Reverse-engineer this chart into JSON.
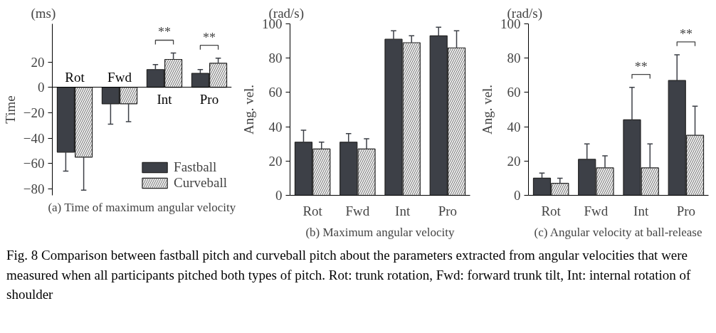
{
  "chart_data": [
    {
      "type": "bar",
      "title": "(a) Time of maximum angular velocity",
      "ylabel": "Time",
      "categories": [
        "Rot",
        "Fwd",
        "Int",
        "Pro"
      ],
      "series": [
        {
          "name": "Fastball",
          "color": "#3d4047",
          "values": [
            -51,
            -13,
            14,
            11
          ],
          "errors": [
            [
              -66,
              -51
            ],
            [
              -29,
              -13
            ],
            [
              14,
              18
            ],
            [
              11,
              14
            ]
          ]
        },
        {
          "name": "Curveball",
          "color": "#eeeeee",
          "values": [
            -55,
            -13,
            22,
            19
          ],
          "errors": [
            [
              -81,
              -55
            ],
            [
              -27,
              -13
            ],
            [
              22,
              27
            ],
            [
              19,
              23
            ]
          ]
        }
      ],
      "ylim": [
        -85,
        50
      ],
      "yticks": [
        -80,
        -60,
        -40,
        -20,
        0,
        20
      ],
      "legend": "bottom right",
      "grid": false,
      "annotations": [
        "(ms)",
        "**",
        "**"
      ]
    },
    {
      "type": "bar",
      "title": "(b) Maximum angular velocity",
      "ylabel": "Ang. vel.",
      "categories": [
        "Rot",
        "Fwd",
        "Int",
        "Pro"
      ],
      "series": [
        {
          "color": "#3d4047",
          "values": [
            31,
            31,
            91,
            93
          ],
          "errors": [
            [
              31,
              38
            ],
            [
              31,
              36
            ],
            [
              91,
              96
            ],
            [
              93,
              98
            ]
          ]
        },
        {
          "color": "#eeeeee",
          "values": [
            27,
            27,
            89,
            86
          ],
          "errors": [
            [
              27,
              31
            ],
            [
              27,
              33
            ],
            [
              89,
              93
            ],
            [
              86,
              96
            ]
          ]
        }
      ],
      "ylim": [
        0,
        100
      ],
      "yticks": [
        0,
        20,
        40,
        60,
        80,
        100
      ],
      "legend": false,
      "grid": false,
      "annotations": [
        "(rad/s)"
      ]
    },
    {
      "type": "bar",
      "title": "(c) Angular velocity at ball-release",
      "ylabel": "Ang. vel.",
      "categories": [
        "Rot",
        "Fwd",
        "Int",
        "Pro"
      ],
      "series": [
        {
          "color": "#3d4047",
          "values": [
            10,
            21,
            44,
            67
          ],
          "errors": [
            [
              10,
              13
            ],
            [
              21,
              30
            ],
            [
              44,
              63
            ],
            [
              67,
              82
            ]
          ]
        },
        {
          "color": "#eeeeee",
          "values": [
            7,
            16,
            16,
            35
          ],
          "errors": [
            [
              7,
              10
            ],
            [
              16,
              23
            ],
            [
              16,
              30
            ],
            [
              35,
              52
            ]
          ]
        }
      ],
      "ylim": [
        0,
        100
      ],
      "yticks": [
        0,
        20,
        40,
        60,
        80,
        100
      ],
      "legend": false,
      "grid": false,
      "annotations": [
        "(rad/s)",
        "**",
        "**",
        "Fig. 8 Comparison between fastball pitch and curveball pitch about the parameters extracted from angular velocities that were measured when all participants pitched both types of pitch. Rot: trunk rotation, Fwd: forward trunk tilt, Int: internal rotation of shoulder"
      ]
    }
  ]
}
